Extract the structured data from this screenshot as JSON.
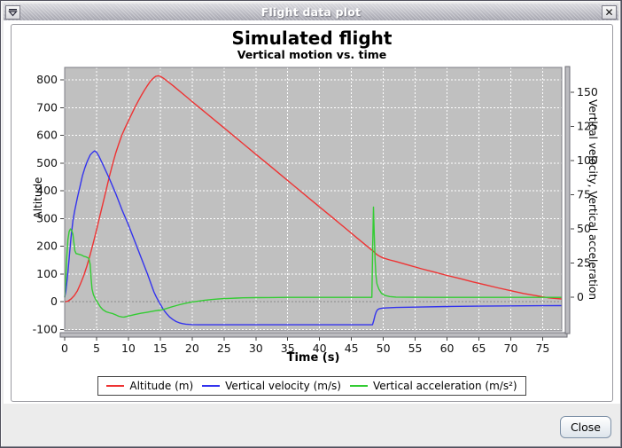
{
  "window": {
    "title": "Flight data plot",
    "close_glyph": "✕"
  },
  "buttons": {
    "close_label": "Close"
  },
  "chart_data": {
    "type": "line",
    "title": "Simulated flight",
    "subtitle": "Vertical motion vs. time",
    "xlabel": "Time (s)",
    "ylabel_left": "Altitude",
    "ylabel_right": "Vertical velocity, Vertical acceleration",
    "xlim": [
      0,
      78
    ],
    "x_ticks": [
      0,
      5,
      10,
      15,
      20,
      25,
      30,
      35,
      40,
      45,
      50,
      55,
      60,
      65,
      70,
      75
    ],
    "ylim_left": [
      -105,
      845
    ],
    "y_ticks_left": [
      -100,
      0,
      100,
      200,
      300,
      400,
      500,
      600,
      700,
      800
    ],
    "ylim_right": [
      -24.5,
      168
    ],
    "y_ticks_right": [
      0,
      25,
      50,
      75,
      100,
      125,
      150
    ],
    "grid": true,
    "legend_position": "bottom",
    "plot_bg": "#c0c0c0",
    "grid_color": "#ffffff",
    "zero_line_color": "#8a8a8a",
    "series": [
      {
        "name": "Altitude (m)",
        "axis": "left",
        "color": "#ee3333",
        "points": [
          [
            0,
            0
          ],
          [
            0.5,
            2
          ],
          [
            1,
            10
          ],
          [
            1.5,
            22
          ],
          [
            2,
            40
          ],
          [
            2.5,
            66
          ],
          [
            3,
            95
          ],
          [
            3.5,
            130
          ],
          [
            4,
            170
          ],
          [
            4.5,
            214
          ],
          [
            5,
            260
          ],
          [
            5.5,
            308
          ],
          [
            6,
            355
          ],
          [
            6.5,
            403
          ],
          [
            7,
            450
          ],
          [
            7.5,
            494
          ],
          [
            8,
            535
          ],
          [
            8.5,
            570
          ],
          [
            9,
            602
          ],
          [
            9.5,
            628
          ],
          [
            10,
            652
          ],
          [
            10.5,
            676
          ],
          [
            11,
            700
          ],
          [
            11.5,
            722
          ],
          [
            12,
            743
          ],
          [
            12.5,
            762
          ],
          [
            13,
            780
          ],
          [
            13.5,
            797
          ],
          [
            14,
            808
          ],
          [
            14.3,
            813
          ],
          [
            14.7,
            815
          ],
          [
            15,
            813
          ],
          [
            15.5,
            806
          ],
          [
            16,
            797
          ],
          [
            17,
            779
          ],
          [
            18,
            760
          ],
          [
            19,
            741
          ],
          [
            20,
            722
          ],
          [
            21,
            703
          ],
          [
            22,
            684
          ],
          [
            24,
            646
          ],
          [
            26,
            608
          ],
          [
            28,
            570
          ],
          [
            30,
            532
          ],
          [
            32,
            494
          ],
          [
            34,
            456
          ],
          [
            36,
            418
          ],
          [
            38,
            380
          ],
          [
            40,
            342
          ],
          [
            42,
            304
          ],
          [
            44,
            266
          ],
          [
            46,
            228
          ],
          [
            47,
            209
          ],
          [
            48,
            190
          ],
          [
            48.5,
            181
          ],
          [
            49,
            170
          ],
          [
            49.5,
            163
          ],
          [
            50,
            158
          ],
          [
            51,
            151
          ],
          [
            52,
            145
          ],
          [
            54,
            132
          ],
          [
            56,
            119
          ],
          [
            58,
            107
          ],
          [
            60,
            95
          ],
          [
            62,
            84
          ],
          [
            64,
            72
          ],
          [
            66,
            61
          ],
          [
            68,
            50
          ],
          [
            70,
            40
          ],
          [
            72,
            30
          ],
          [
            74,
            22
          ],
          [
            76,
            14
          ],
          [
            78,
            10
          ]
        ]
      },
      {
        "name": "Vertical velocity (m/s)",
        "axis": "right",
        "color": "#3333ee",
        "points": [
          [
            0,
            0
          ],
          [
            0.2,
            5
          ],
          [
            0.5,
            18
          ],
          [
            0.8,
            34
          ],
          [
            1,
            44
          ],
          [
            1.3,
            56
          ],
          [
            1.6,
            64
          ],
          [
            2,
            73
          ],
          [
            2.4,
            81
          ],
          [
            2.8,
            89
          ],
          [
            3.2,
            95
          ],
          [
            3.6,
            100
          ],
          [
            4,
            104
          ],
          [
            4.4,
            106
          ],
          [
            4.7,
            107
          ],
          [
            5,
            106
          ],
          [
            5.4,
            103
          ],
          [
            5.8,
            99
          ],
          [
            6.4,
            93
          ],
          [
            7,
            87
          ],
          [
            8,
            76
          ],
          [
            9,
            64
          ],
          [
            10,
            53
          ],
          [
            11,
            41
          ],
          [
            12,
            29
          ],
          [
            13,
            17
          ],
          [
            14,
            4
          ],
          [
            14.4,
            0
          ],
          [
            15,
            -5
          ],
          [
            15.5,
            -9
          ],
          [
            16,
            -12
          ],
          [
            16.5,
            -14.5
          ],
          [
            17,
            -16.3
          ],
          [
            17.5,
            -17.7
          ],
          [
            18,
            -18.6
          ],
          [
            18.5,
            -19.2
          ],
          [
            19,
            -19.6
          ],
          [
            19.5,
            -19.8
          ],
          [
            20,
            -19.9
          ],
          [
            21,
            -20
          ],
          [
            25,
            -20
          ],
          [
            30,
            -20
          ],
          [
            35,
            -20
          ],
          [
            40,
            -20
          ],
          [
            45,
            -20
          ],
          [
            48.3,
            -20
          ],
          [
            48.5,
            -17
          ],
          [
            48.7,
            -13
          ],
          [
            48.9,
            -10.5
          ],
          [
            49.1,
            -9
          ],
          [
            49.4,
            -8.2
          ],
          [
            49.8,
            -7.9
          ],
          [
            50.5,
            -7.7
          ],
          [
            52,
            -7.4
          ],
          [
            55,
            -7.1
          ],
          [
            60,
            -6.7
          ],
          [
            65,
            -6.4
          ],
          [
            70,
            -6.2
          ],
          [
            75,
            -6.1
          ],
          [
            78,
            -6
          ]
        ]
      },
      {
        "name": "Vertical acceleration (m/s²)",
        "axis": "right",
        "color": "#33cc33",
        "points": [
          [
            0,
            0
          ],
          [
            0.15,
            12
          ],
          [
            0.3,
            28
          ],
          [
            0.5,
            42
          ],
          [
            0.7,
            48
          ],
          [
            0.9,
            50
          ],
          [
            1.1,
            49
          ],
          [
            1.3,
            46
          ],
          [
            1.45,
            40
          ],
          [
            1.6,
            34
          ],
          [
            1.8,
            32
          ],
          [
            2.2,
            31.5
          ],
          [
            2.6,
            31
          ],
          [
            3,
            30
          ],
          [
            3.4,
            29.5
          ],
          [
            3.8,
            28.5
          ],
          [
            4,
            24
          ],
          [
            4.15,
            14
          ],
          [
            4.3,
            6
          ],
          [
            4.5,
            2
          ],
          [
            4.8,
            -1
          ],
          [
            5.2,
            -4
          ],
          [
            5.6,
            -7
          ],
          [
            6,
            -9
          ],
          [
            6.5,
            -10.5
          ],
          [
            7,
            -11.2
          ],
          [
            7.5,
            -11.8
          ],
          [
            8,
            -12.8
          ],
          [
            8.5,
            -13.8
          ],
          [
            9,
            -14.3
          ],
          [
            9.3,
            -14.4
          ],
          [
            9.6,
            -14.1
          ],
          [
            10,
            -13.6
          ],
          [
            10.5,
            -13.1
          ],
          [
            11,
            -12.6
          ],
          [
            12,
            -11.6
          ],
          [
            13,
            -10.8
          ],
          [
            14,
            -10
          ],
          [
            15,
            -9.3
          ],
          [
            15.5,
            -8.8
          ],
          [
            16,
            -8.1
          ],
          [
            16.5,
            -7.4
          ],
          [
            17,
            -6.7
          ],
          [
            17.5,
            -6
          ],
          [
            18,
            -5.4
          ],
          [
            19,
            -4.3
          ],
          [
            20,
            -3.4
          ],
          [
            21,
            -2.7
          ],
          [
            22,
            -2.1
          ],
          [
            23,
            -1.6
          ],
          [
            24,
            -1.2
          ],
          [
            25,
            -0.9
          ],
          [
            26,
            -0.7
          ],
          [
            27,
            -0.5
          ],
          [
            28,
            -0.35
          ],
          [
            30,
            -0.2
          ],
          [
            32,
            -0.1
          ],
          [
            35,
            0
          ],
          [
            40,
            0
          ],
          [
            45,
            0
          ],
          [
            48.2,
            0
          ],
          [
            48.35,
            40
          ],
          [
            48.45,
            66
          ],
          [
            48.55,
            50
          ],
          [
            48.7,
            28
          ],
          [
            48.85,
            16
          ],
          [
            49,
            10
          ],
          [
            49.3,
            6
          ],
          [
            49.7,
            3
          ],
          [
            50.2,
            1.5
          ],
          [
            51,
            0.6
          ],
          [
            52,
            0.2
          ],
          [
            54,
            0.05
          ],
          [
            58,
            0
          ],
          [
            65,
            0
          ],
          [
            72,
            0
          ],
          [
            78,
            0
          ]
        ]
      }
    ]
  }
}
